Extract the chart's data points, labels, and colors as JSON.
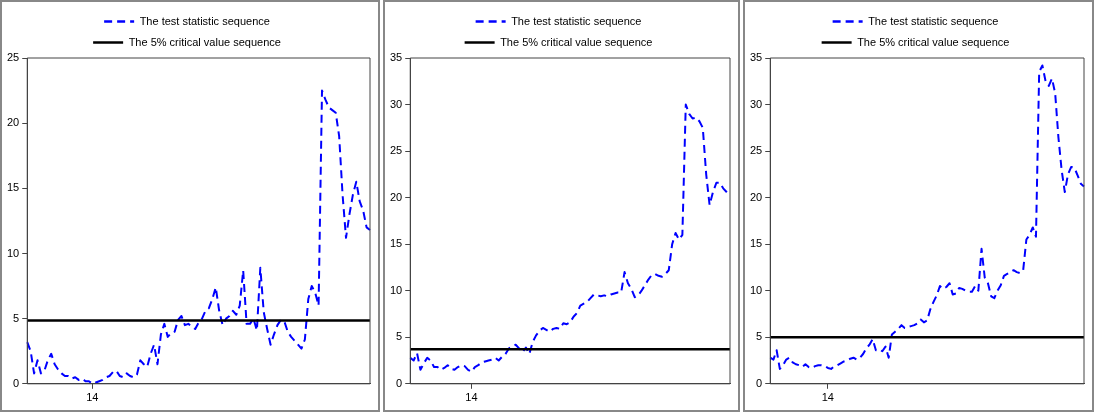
{
  "chart_data": [
    {
      "type": "line",
      "categories": [
        null,
        null,
        null,
        null,
        null,
        null,
        null,
        null,
        null,
        null,
        null,
        null,
        null,
        null,
        null,
        null,
        null,
        null,
        null,
        "14",
        null,
        null,
        null,
        null,
        null,
        null,
        null,
        null,
        null,
        null,
        null,
        null,
        null,
        null,
        null,
        null,
        null,
        null,
        null,
        null,
        null,
        null,
        null,
        null,
        null,
        null,
        null,
        null,
        null,
        null,
        null,
        null,
        null,
        null,
        null,
        null,
        null,
        null,
        null,
        null,
        null,
        null,
        null,
        null,
        null,
        null,
        null,
        null,
        null,
        null,
        null,
        null,
        null,
        null,
        null,
        null,
        null,
        null,
        null,
        null,
        null,
        null,
        null,
        null,
        null,
        null,
        null,
        null,
        null,
        null,
        null,
        null,
        null,
        null,
        null,
        null,
        null,
        null,
        null,
        null,
        null
      ],
      "series": [
        {
          "name": "The test statistic sequence",
          "color": "#0000ff",
          "line_style": "dashed",
          "values": [
            3.2,
            2.5,
            0.8,
            1.8,
            0.8,
            1.0,
            1.8,
            2.3,
            1.5,
            1.1,
            0.8,
            0.6,
            0.6,
            0.4,
            0.5,
            0.3,
            0.4,
            0.2,
            0.2,
            0.0,
            0.1,
            0.2,
            0.3,
            0.5,
            0.6,
            0.9,
            1.0,
            0.6,
            0.5,
            0.8,
            0.6,
            0.5,
            0.7,
            1.8,
            1.5,
            1.3,
            2.3,
            3.0,
            1.5,
            3.8,
            4.6,
            3.6,
            3.9,
            4.0,
            4.9,
            5.2,
            4.5,
            4.6,
            4.4,
            4.2,
            4.7,
            5.0,
            5.6,
            5.8,
            6.5,
            7.4,
            5.6,
            4.5,
            5.0,
            5.2,
            5.6,
            5.3,
            6.0,
            8.7,
            4.6,
            4.6,
            5.0,
            4.1,
            8.9,
            5.5,
            4.2,
            3.0,
            3.8,
            4.5,
            4.9,
            4.8,
            4.0,
            3.6,
            3.3,
            3.0,
            2.7,
            3.4,
            6.5,
            7.5,
            7.0,
            6.0,
            22.5,
            21.8,
            21.2,
            21.0,
            20.8,
            19.0,
            14.5,
            11.2,
            13.0,
            14.5,
            15.5,
            14.0,
            13.3,
            12.0,
            11.8
          ]
        }
      ],
      "ref_lines": [
        {
          "axis": "y",
          "value": 4.85,
          "label": "The 5% critical value sequence",
          "color": "#000000"
        }
      ],
      "ylim": [
        0,
        25
      ],
      "yticks": [
        0,
        5,
        10,
        15,
        20,
        25
      ],
      "legend": "top",
      "marker": "none"
    },
    {
      "type": "line",
      "categories": [
        null,
        null,
        null,
        null,
        null,
        null,
        null,
        null,
        null,
        null,
        null,
        null,
        null,
        null,
        null,
        null,
        null,
        null,
        "14",
        null,
        null,
        null,
        null,
        null,
        null,
        null,
        null,
        null,
        null,
        null,
        null,
        null,
        null,
        null,
        null,
        null,
        null,
        null,
        null,
        null,
        null,
        null,
        null,
        null,
        null,
        null,
        null,
        null,
        null,
        null,
        null,
        null,
        null,
        null,
        null,
        null,
        null,
        null,
        null,
        null,
        null,
        null,
        null,
        null,
        null,
        null,
        null,
        null,
        null,
        null,
        null,
        null,
        null,
        null,
        null,
        null,
        null,
        null,
        null,
        null,
        null,
        null,
        null,
        null,
        null,
        null,
        null,
        null,
        null,
        null,
        null,
        null,
        null,
        null,
        null
      ],
      "series": [
        {
          "name": "The test statistic sequence",
          "color": "#0000ff",
          "line_style": "dashed",
          "values": [
            2.8,
            2.5,
            3.3,
            1.5,
            2.2,
            2.8,
            2.5,
            1.8,
            1.8,
            1.5,
            1.7,
            2.0,
            1.6,
            1.5,
            1.8,
            2.0,
            1.9,
            1.5,
            1.3,
            1.8,
            2.0,
            2.3,
            2.4,
            2.5,
            2.6,
            2.8,
            2.5,
            2.9,
            3.2,
            3.8,
            4.0,
            4.2,
            3.8,
            3.4,
            3.9,
            3.2,
            4.5,
            5.2,
            5.7,
            6.0,
            5.8,
            5.6,
            5.9,
            6.0,
            5.9,
            6.5,
            6.4,
            6.6,
            7.2,
            7.6,
            8.4,
            8.6,
            8.8,
            9.2,
            9.6,
            9.5,
            9.4,
            9.5,
            9.4,
            9.6,
            9.7,
            9.8,
            9.8,
            12.0,
            10.8,
            10.2,
            9.3,
            9.5,
            10.0,
            10.6,
            11.2,
            11.7,
            11.8,
            11.6,
            11.5,
            11.8,
            12.2,
            15.0,
            16.2,
            15.5,
            16.0,
            30.0,
            29.0,
            28.5,
            28.6,
            28.2,
            27.5,
            22.5,
            19.2,
            20.6,
            21.6,
            21.6,
            21.0,
            20.6,
            20.2
          ]
        }
      ],
      "ref_lines": [
        {
          "axis": "y",
          "value": 3.7,
          "label": "The 5% critical value sequence",
          "color": "#000000"
        }
      ],
      "ylim": [
        0,
        35
      ],
      "yticks": [
        0,
        5,
        10,
        15,
        20,
        25,
        30,
        35
      ],
      "legend": "top",
      "marker": "none"
    },
    {
      "type": "line",
      "categories": [
        null,
        null,
        null,
        null,
        null,
        null,
        null,
        null,
        null,
        null,
        null,
        null,
        null,
        null,
        null,
        null,
        null,
        null,
        "14",
        null,
        null,
        null,
        null,
        null,
        null,
        null,
        null,
        null,
        null,
        null,
        null,
        null,
        null,
        null,
        null,
        null,
        null,
        null,
        null,
        null,
        null,
        null,
        null,
        null,
        null,
        null,
        null,
        null,
        null,
        null,
        null,
        null,
        null,
        null,
        null,
        null,
        null,
        null,
        null,
        null,
        null,
        null,
        null,
        null,
        null,
        null,
        null,
        null,
        null,
        null,
        null,
        null,
        null,
        null,
        null,
        null,
        null,
        null,
        null,
        null,
        null,
        null,
        null,
        null,
        null,
        null,
        null,
        null,
        null,
        null,
        null,
        null,
        null,
        null,
        null,
        null,
        null,
        null,
        null
      ],
      "series": [
        {
          "name": "The test statistic sequence",
          "color": "#0000ff",
          "line_style": "dashed",
          "values": [
            2.8,
            2.6,
            3.6,
            1.6,
            2.0,
            2.6,
            2.8,
            2.3,
            2.1,
            2.0,
            1.8,
            2.1,
            1.8,
            1.7,
            1.9,
            2.0,
            2.0,
            1.9,
            1.7,
            1.6,
            1.9,
            2.0,
            2.2,
            2.4,
            2.5,
            2.7,
            2.8,
            2.6,
            2.8,
            3.2,
            3.8,
            4.2,
            4.8,
            3.6,
            3.7,
            3.5,
            4.0,
            2.8,
            5.3,
            5.6,
            5.9,
            6.3,
            6.0,
            6.1,
            6.2,
            6.3,
            6.5,
            6.9,
            6.6,
            6.8,
            8.0,
            8.8,
            9.5,
            10.5,
            10.2,
            10.4,
            10.8,
            9.6,
            9.7,
            10.3,
            10.2,
            10.0,
            9.9,
            9.9,
            10.5,
            10.0,
            14.5,
            11.4,
            10.8,
            9.4,
            9.2,
            10.0,
            10.6,
            11.6,
            11.8,
            12.0,
            12.2,
            12.0,
            11.9,
            12.2,
            15.5,
            16.0,
            16.8,
            15.8,
            33.5,
            34.2,
            32.5,
            32.0,
            32.8,
            31.2,
            26.5,
            23.0,
            20.6,
            22.5,
            23.3,
            23.2,
            22.4,
            21.5,
            21.2
          ]
        }
      ],
      "ref_lines": [
        {
          "axis": "y",
          "value": 5.0,
          "label": "The 5% critical value sequence",
          "color": "#000000"
        }
      ],
      "ylim": [
        0,
        35
      ],
      "yticks": [
        0,
        5,
        10,
        15,
        20,
        25,
        30,
        35
      ],
      "legend": "top",
      "marker": "none"
    }
  ]
}
